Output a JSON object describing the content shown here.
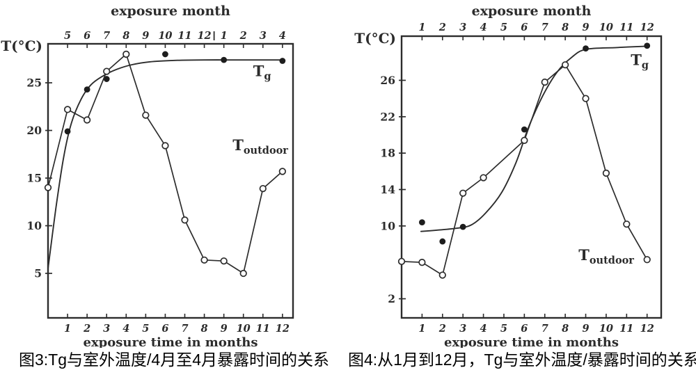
{
  "colors": {
    "ink": "#2c2c2c",
    "marker_fill": "#1d1d1d",
    "marker_open_fill": "#ffffff",
    "background": "#ffffff",
    "caption_text": "#000000"
  },
  "chart_data": [
    {
      "type": "line",
      "title": "exposure month",
      "xlabel": "exposure time in months",
      "ylabel": "T(°C)",
      "caption": "图3:Tg与室外温度/4月至4月暴露时间的关系",
      "x_ticks": [
        "1",
        "2",
        "3",
        "4",
        "5",
        "6",
        "7",
        "8",
        "9",
        "10",
        "11",
        "12"
      ],
      "top_tick_labels": [
        "5",
        "6",
        "7",
        "8",
        "9",
        "10",
        "11",
        "12",
        "1",
        "2",
        "3",
        "4"
      ],
      "top_axis_year_separator_between": [
        "12",
        "1"
      ],
      "y_ticks": [
        "5",
        "10",
        "15",
        "20",
        "25"
      ],
      "xlim": [
        0,
        12.54
      ],
      "ylim": [
        0.33,
        29.09
      ],
      "grid": false,
      "legend_position": "in-plot-text",
      "series": [
        {
          "name": "Tg",
          "label": {
            "main": "T",
            "sub": "g",
            "pos": [
              10.5,
              26.15
            ]
          },
          "marker": "filled",
          "points": [
            [
              1,
              19.9
            ],
            [
              2,
              24.3
            ],
            [
              3,
              25.4
            ],
            [
              6,
              28.0
            ],
            [
              9,
              27.4
            ],
            [
              12,
              27.3
            ]
          ],
          "fit_curve": [
            [
              0,
              5.5
            ],
            [
              0.4,
              11.8
            ],
            [
              0.8,
              17.2
            ],
            [
              1.2,
              20.8
            ],
            [
              1.7,
              23.3
            ],
            [
              2.2,
              24.8
            ],
            [
              2.8,
              25.7
            ],
            [
              3.5,
              26.4
            ],
            [
              4.3,
              26.9
            ],
            [
              5.2,
              27.2
            ],
            [
              6.5,
              27.35
            ],
            [
              8,
              27.4
            ],
            [
              10,
              27.4
            ],
            [
              12,
              27.4
            ]
          ]
        },
        {
          "name": "T_outdoor",
          "label": {
            "main": "T",
            "sub": "outdoor",
            "pos": [
              9.45,
              18.35
            ]
          },
          "marker": "open",
          "connect_points": true,
          "points": [
            [
              0,
              14.0
            ],
            [
              1,
              22.2
            ],
            [
              2,
              21.1
            ],
            [
              3,
              26.2
            ],
            [
              4,
              28.0
            ],
            [
              5,
              21.6
            ],
            [
              6,
              18.4
            ],
            [
              7,
              10.6
            ],
            [
              8,
              6.4
            ],
            [
              9,
              6.3
            ],
            [
              10,
              5.0
            ],
            [
              11,
              13.9
            ],
            [
              12,
              15.7
            ]
          ]
        }
      ]
    },
    {
      "type": "line",
      "title": "exposure month",
      "xlabel": "exposure time in months",
      "ylabel": "T(°C)",
      "caption": "图4:从1月到12月，Tg与室外温度/暴露时间的关系",
      "x_ticks": [
        "1",
        "2",
        "3",
        "4",
        "5",
        "6",
        "7",
        "8",
        "9",
        "10",
        "11",
        "12"
      ],
      "top_tick_labels": [
        "1",
        "2",
        "3",
        "4",
        "5",
        "6",
        "7",
        "8",
        "9",
        "10",
        "11",
        "12"
      ],
      "y_ticks": [
        "2",
        "10",
        "14",
        "18",
        "22",
        "26"
      ],
      "xlim": [
        0,
        12.69
      ],
      "ylim": [
        -0.1,
        30.85
      ],
      "grid": false,
      "legend_position": "in-plot-text",
      "series": [
        {
          "name": "Tg",
          "label": {
            "main": "T",
            "sub": "g",
            "pos": [
              11.2,
              28.15
            ]
          },
          "marker": "filled",
          "points": [
            [
              1,
              10.4
            ],
            [
              2,
              8.3
            ],
            [
              3,
              9.9
            ],
            [
              6,
              20.6
            ],
            [
              9,
              29.5
            ],
            [
              12,
              29.8
            ]
          ],
          "fit_curve": [
            [
              0.95,
              9.4
            ],
            [
              1.8,
              9.55
            ],
            [
              2.7,
              9.75
            ],
            [
              3.4,
              10.1
            ],
            [
              4.1,
              11.4
            ],
            [
              4.9,
              13.7
            ],
            [
              5.6,
              17.0
            ],
            [
              6.2,
              20.8
            ],
            [
              6.9,
              24.3
            ],
            [
              7.6,
              26.9
            ],
            [
              8.3,
              28.5
            ],
            [
              9,
              29.4
            ],
            [
              10.5,
              29.6
            ],
            [
              12,
              29.75
            ]
          ]
        },
        {
          "name": "T_outdoor",
          "label": {
            "main": "T",
            "sub": "outdoor",
            "pos": [
              8.65,
              6.7
            ]
          },
          "marker": "open",
          "connect_points": true,
          "points": [
            [
              0,
              6.1
            ],
            [
              1,
              6.0
            ],
            [
              2,
              4.6
            ],
            [
              3,
              13.6
            ],
            [
              4,
              15.3
            ],
            [
              6,
              19.4
            ],
            [
              7,
              25.8
            ],
            [
              8,
              27.7
            ],
            [
              9,
              24.0
            ],
            [
              10,
              15.8
            ],
            [
              11,
              10.2
            ],
            [
              12,
              6.3
            ]
          ]
        }
      ]
    }
  ]
}
